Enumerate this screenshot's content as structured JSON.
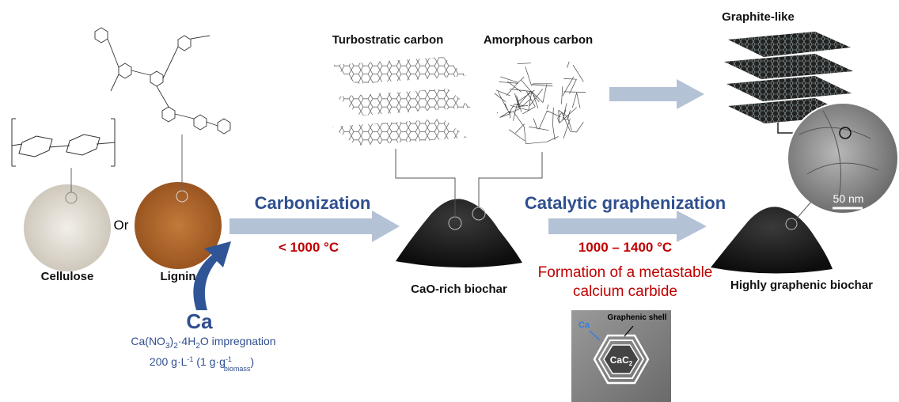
{
  "labels": {
    "turbostratic": "Turbostratic carbon",
    "amorphous": "Amorphous carbon",
    "graphite": "Graphite-like",
    "cellulose": "Cellulose",
    "or": "Or",
    "lignin": "Lignin",
    "cao_biochar": "CaO-rich biochar",
    "graphenic_biochar": "Highly graphenic biochar",
    "scale": "50 nm"
  },
  "steps": [
    {
      "title": "Carbonization",
      "temperature": "< 1000 °C"
    },
    {
      "title": "Catalytic graphenization",
      "temperature": "1000 – 1400 °C",
      "note": [
        "Formation of a metastable",
        "calcium carbide"
      ]
    }
  ],
  "calcium": {
    "symbol": "Ca",
    "salt": [
      "Ca(NO",
      "3",
      ")",
      "2",
      "·4H",
      "2",
      "O impregnation"
    ],
    "dose": [
      "200 g·L",
      "-1",
      " (1 g·g",
      "-1",
      "biomass",
      ")"
    ]
  },
  "inset": {
    "ion": "Ca",
    "shell": "Graphenic shell",
    "core": [
      "CaC",
      "2"
    ]
  }
}
